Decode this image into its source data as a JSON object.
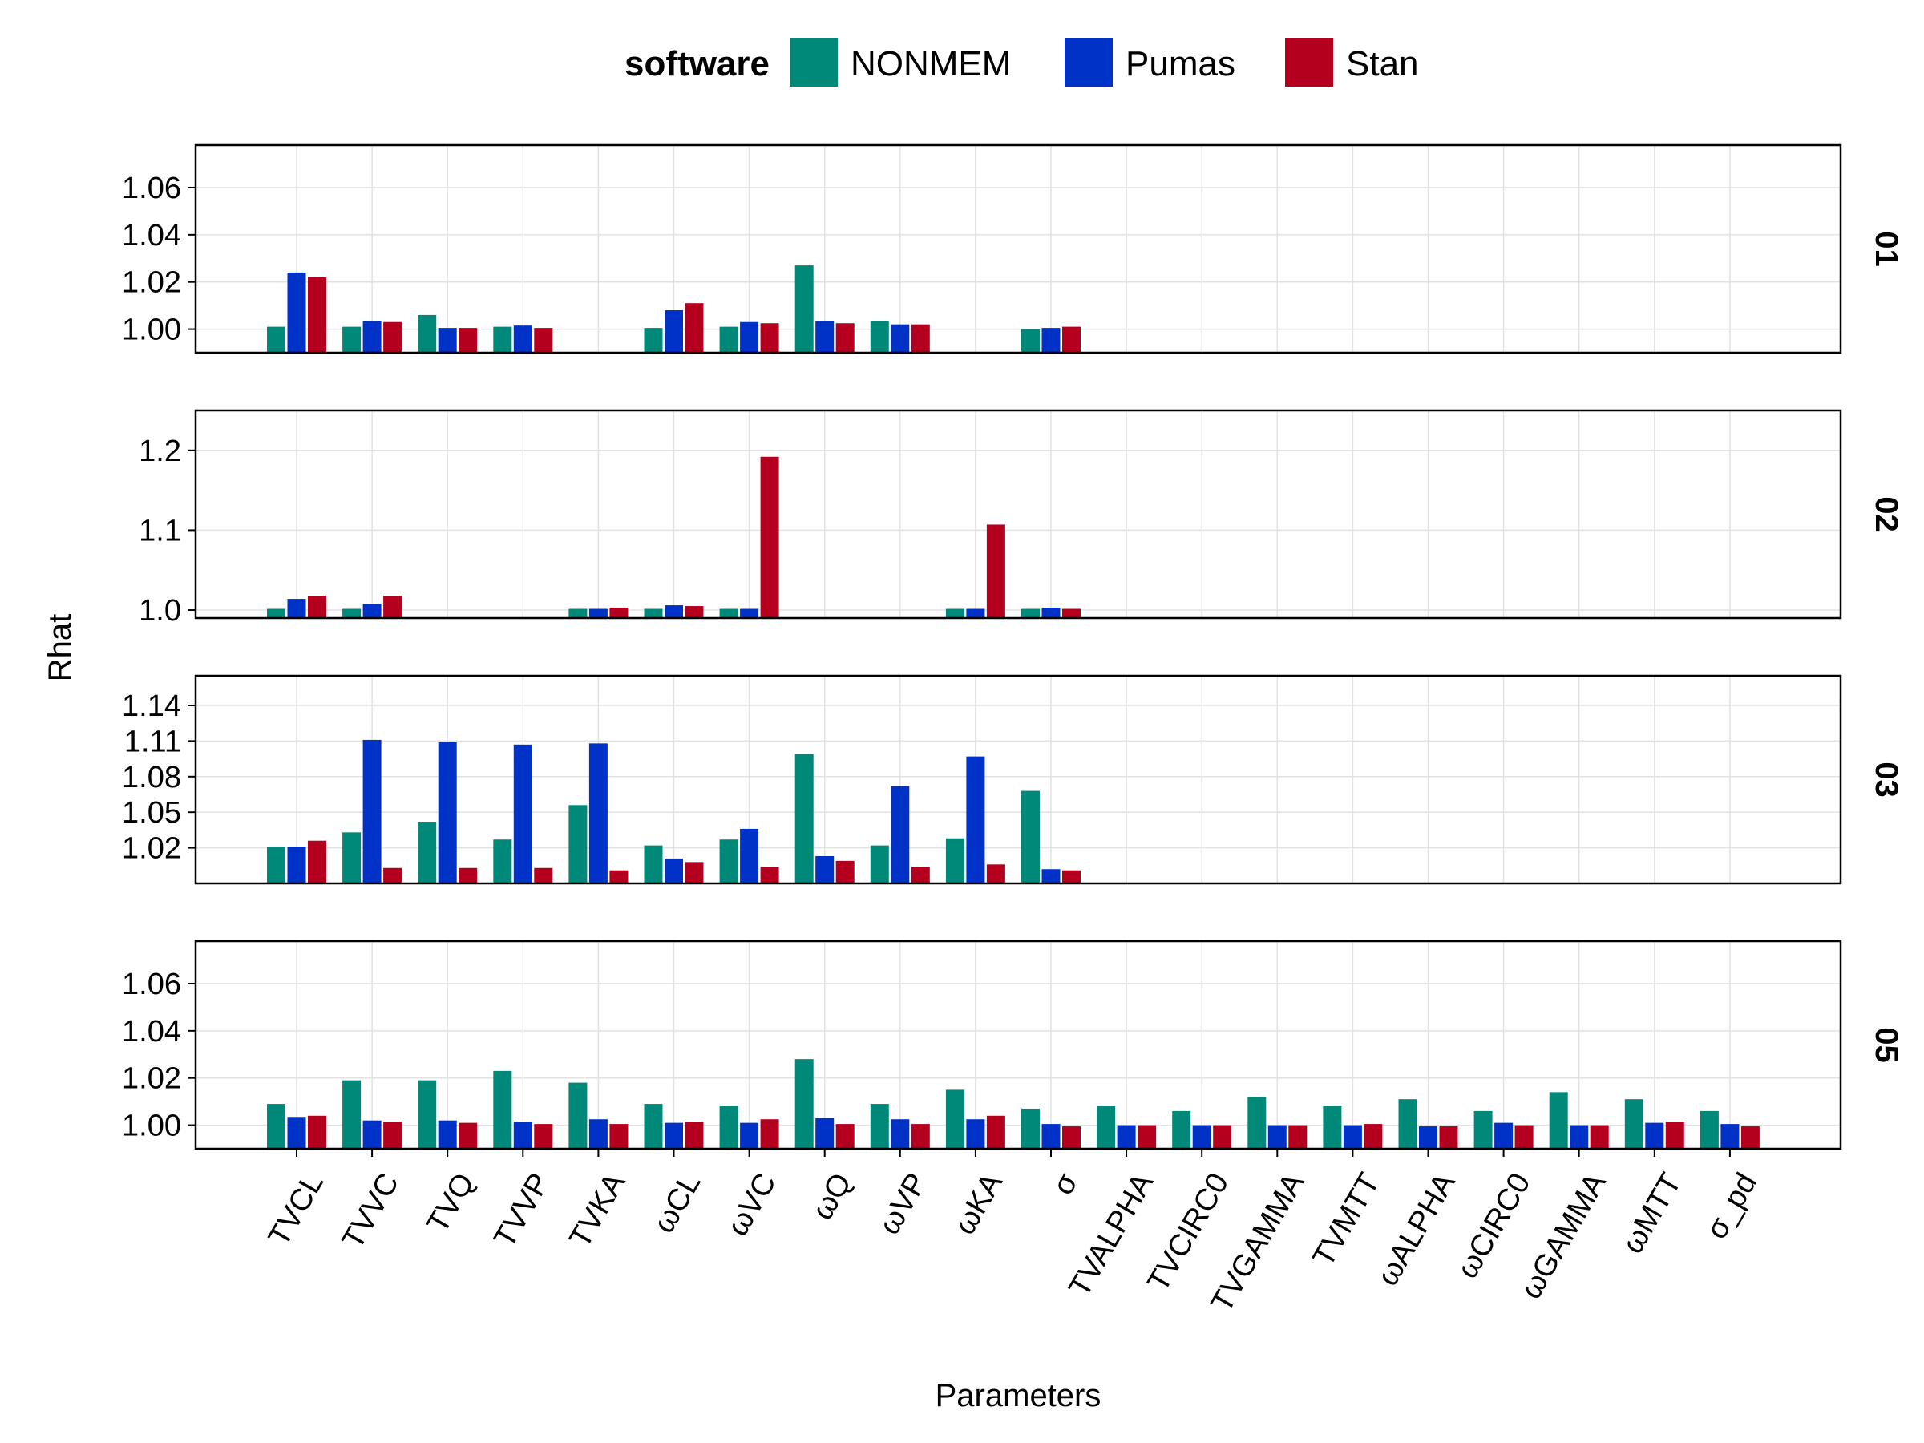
{
  "chart_data": {
    "type": "bar",
    "xlabel": "Parameters",
    "ylabel": "Rhat",
    "legend": {
      "title": "software",
      "placement": "top-center",
      "entries": [
        "NONMEM",
        "Pumas",
        "Stan"
      ]
    },
    "colors": {
      "NONMEM": "#008878",
      "Pumas": "#0032c8",
      "Stan": "#b4001e"
    },
    "grid": true,
    "categories": [
      "TVCL",
      "TVVC",
      "TVQ",
      "TVVP",
      "TVKA",
      "ωCL",
      "ωVC",
      "ωQ",
      "ωVP",
      "ωKA",
      "σ",
      "TVALPHA",
      "TVCIRC0",
      "TVGAMMA",
      "TVMTT",
      "ωALPHA",
      "ωCIRC0",
      "ωGAMMA",
      "ωMTT",
      "σ_pd"
    ],
    "panels": [
      {
        "label": "01",
        "ylim": [
          0.99,
          1.078
        ],
        "yticks": [
          1.0,
          1.02,
          1.04,
          1.06
        ],
        "ytick_labels": [
          "1.00",
          "1.02",
          "1.04",
          "1.06"
        ],
        "series": [
          {
            "name": "NONMEM",
            "values": [
              1.001,
              1.001,
              1.006,
              1.001,
              null,
              1.0005,
              1.001,
              1.027,
              1.0035,
              null,
              1.0,
              null,
              null,
              null,
              null,
              null,
              null,
              null,
              null,
              null
            ]
          },
          {
            "name": "Pumas",
            "values": [
              1.024,
              1.0035,
              1.0005,
              1.0015,
              null,
              1.008,
              1.003,
              1.0035,
              1.002,
              null,
              1.0005,
              null,
              null,
              null,
              null,
              null,
              null,
              null,
              null,
              null
            ]
          },
          {
            "name": "Stan",
            "values": [
              1.022,
              1.003,
              1.0005,
              1.0005,
              null,
              1.011,
              1.0025,
              1.0025,
              1.002,
              null,
              1.001,
              null,
              null,
              null,
              null,
              null,
              null,
              null,
              null,
              null
            ]
          }
        ]
      },
      {
        "label": "02",
        "ylim": [
          0.99,
          1.25
        ],
        "yticks": [
          1.0,
          1.1,
          1.2
        ],
        "ytick_labels": [
          "1.0",
          "1.1",
          "1.2"
        ],
        "series": [
          {
            "name": "NONMEM",
            "values": [
              1.0015,
              1.0015,
              null,
              null,
              1.0015,
              1.0015,
              1.0015,
              null,
              null,
              1.0015,
              1.0015,
              null,
              null,
              null,
              null,
              null,
              null,
              null,
              null,
              null
            ]
          },
          {
            "name": "Pumas",
            "values": [
              1.014,
              1.008,
              null,
              null,
              1.0015,
              1.006,
              1.0015,
              null,
              null,
              1.0015,
              1.003,
              null,
              null,
              null,
              null,
              null,
              null,
              null,
              null,
              null
            ]
          },
          {
            "name": "Stan",
            "values": [
              1.018,
              1.018,
              null,
              null,
              1.003,
              1.005,
              1.192,
              null,
              null,
              1.107,
              1.0015,
              null,
              null,
              null,
              null,
              null,
              null,
              null,
              null,
              null
            ]
          }
        ]
      },
      {
        "label": "03",
        "ylim": [
          0.99,
          1.165
        ],
        "yticks": [
          1.02,
          1.05,
          1.08,
          1.11,
          1.14
        ],
        "ytick_labels": [
          "1.02",
          "1.05",
          "1.08",
          "1.11",
          "1.14"
        ],
        "series": [
          {
            "name": "NONMEM",
            "values": [
              1.021,
              1.033,
              1.042,
              1.027,
              1.056,
              1.022,
              1.027,
              1.099,
              1.022,
              1.028,
              1.068,
              null,
              null,
              null,
              null,
              null,
              null,
              null,
              null,
              null
            ]
          },
          {
            "name": "Pumas",
            "values": [
              1.021,
              1.111,
              1.109,
              1.107,
              1.108,
              1.011,
              1.036,
              1.013,
              1.072,
              1.097,
              1.002,
              null,
              null,
              null,
              null,
              null,
              null,
              null,
              null,
              null
            ]
          },
          {
            "name": "Stan",
            "values": [
              1.026,
              1.003,
              1.003,
              1.003,
              1.001,
              1.008,
              1.004,
              1.009,
              1.004,
              1.006,
              1.001,
              null,
              null,
              null,
              null,
              null,
              null,
              null,
              null,
              null
            ]
          }
        ]
      },
      {
        "label": "05",
        "ylim": [
          0.99,
          1.078
        ],
        "yticks": [
          1.0,
          1.02,
          1.04,
          1.06
        ],
        "ytick_labels": [
          "1.00",
          "1.02",
          "1.04",
          "1.06"
        ],
        "series": [
          {
            "name": "NONMEM",
            "values": [
              1.009,
              1.019,
              1.019,
              1.023,
              1.018,
              1.009,
              1.008,
              1.028,
              1.009,
              1.015,
              1.007,
              1.008,
              1.006,
              1.012,
              1.008,
              1.011,
              1.006,
              1.014,
              1.011,
              1.006
            ]
          },
          {
            "name": "Pumas",
            "values": [
              1.0035,
              1.002,
              1.002,
              1.0015,
              1.0025,
              1.001,
              1.001,
              1.003,
              1.0025,
              1.0025,
              1.0005,
              1.0,
              1.0,
              1.0,
              1.0,
              0.9995,
              1.001,
              1.0,
              1.001,
              1.0005
            ]
          },
          {
            "name": "Stan",
            "values": [
              1.004,
              1.0015,
              1.001,
              1.0005,
              1.0005,
              1.0015,
              1.0025,
              1.0005,
              1.0005,
              1.004,
              0.9995,
              1.0,
              1.0,
              1.0,
              1.0005,
              0.9995,
              1.0,
              1.0,
              1.0015,
              0.9995
            ]
          }
        ]
      }
    ]
  }
}
